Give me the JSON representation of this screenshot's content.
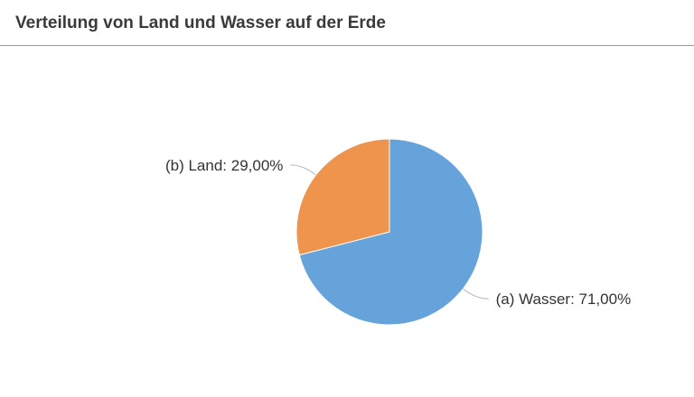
{
  "header": {
    "title": "Verteilung von Land und Wasser auf der Erde"
  },
  "chart_data": {
    "type": "pie",
    "title": "Verteilung von Land und Wasser auf der Erde",
    "slices": [
      {
        "label": "(a) Wasser: 71,00%",
        "name": "(a) Wasser",
        "value": 71.0,
        "color": "#66a3da"
      },
      {
        "label": "(b) Land: 29,00%",
        "name": "(b) Land",
        "value": 29.0,
        "color": "#ef944d"
      }
    ],
    "legend": "none",
    "grid": false
  }
}
